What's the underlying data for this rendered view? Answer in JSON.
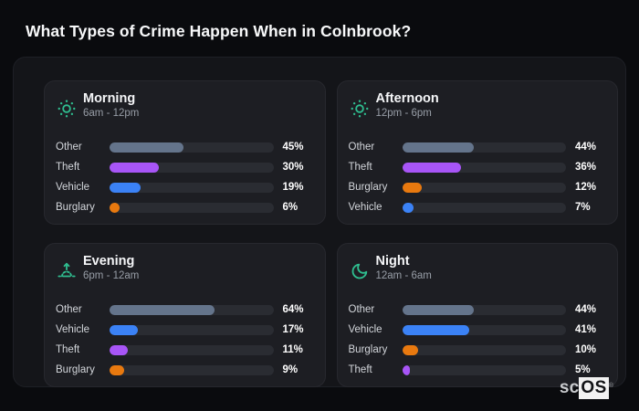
{
  "title": "What Types of Crime Happen When in Colnbrook?",
  "brand": {
    "prefix": "sc",
    "suffix": "OS",
    "reg": "®"
  },
  "colors": {
    "page_bg": "#0a0b0e",
    "container_bg": "#141519",
    "panel_bg": "#1d1e23",
    "track_bg": "#2a2c32",
    "icon_teal": "#2fbd8f",
    "other": "#64748b",
    "theft": "#a855f7",
    "vehicle": "#3b82f6",
    "burglary": "#e8790f"
  },
  "panels": [
    {
      "title": "Morning",
      "time": "6am - 12pm",
      "icon": "sun-icon",
      "rows": [
        {
          "label": "Other",
          "pct": 45,
          "display": "45%",
          "color": "#64748b"
        },
        {
          "label": "Theft",
          "pct": 30,
          "display": "30%",
          "color": "#a855f7"
        },
        {
          "label": "Vehicle",
          "pct": 19,
          "display": "19%",
          "color": "#3b82f6"
        },
        {
          "label": "Burglary",
          "pct": 6,
          "display": "6%",
          "color": "#e8790f"
        }
      ]
    },
    {
      "title": "Afternoon",
      "time": "12pm - 6pm",
      "icon": "sun-icon",
      "rows": [
        {
          "label": "Other",
          "pct": 44,
          "display": "44%",
          "color": "#64748b"
        },
        {
          "label": "Theft",
          "pct": 36,
          "display": "36%",
          "color": "#a855f7"
        },
        {
          "label": "Burglary",
          "pct": 12,
          "display": "12%",
          "color": "#e8790f"
        },
        {
          "label": "Vehicle",
          "pct": 7,
          "display": "7%",
          "color": "#3b82f6"
        }
      ]
    },
    {
      "title": "Evening",
      "time": "6pm - 12am",
      "icon": "sunrise-icon",
      "rows": [
        {
          "label": "Other",
          "pct": 64,
          "display": "64%",
          "color": "#64748b"
        },
        {
          "label": "Vehicle",
          "pct": 17,
          "display": "17%",
          "color": "#3b82f6"
        },
        {
          "label": "Theft",
          "pct": 11,
          "display": "11%",
          "color": "#a855f7"
        },
        {
          "label": "Burglary",
          "pct": 9,
          "display": "9%",
          "color": "#e8790f"
        }
      ]
    },
    {
      "title": "Night",
      "time": "12am - 6am",
      "icon": "moon-icon",
      "rows": [
        {
          "label": "Other",
          "pct": 44,
          "display": "44%",
          "color": "#64748b"
        },
        {
          "label": "Vehicle",
          "pct": 41,
          "display": "41%",
          "color": "#3b82f6"
        },
        {
          "label": "Burglary",
          "pct": 10,
          "display": "10%",
          "color": "#e8790f"
        },
        {
          "label": "Theft",
          "pct": 5,
          "display": "5%",
          "color": "#a855f7"
        }
      ]
    }
  ],
  "chart_data": [
    {
      "type": "bar",
      "orientation": "horizontal",
      "title": "Morning",
      "subtitle": "6am - 12pm",
      "categories": [
        "Other",
        "Theft",
        "Vehicle",
        "Burglary"
      ],
      "values": [
        45,
        30,
        19,
        6
      ],
      "unit": "%",
      "xlim": [
        0,
        100
      ],
      "grid": false,
      "legend": "none"
    },
    {
      "type": "bar",
      "orientation": "horizontal",
      "title": "Afternoon",
      "subtitle": "12pm - 6pm",
      "categories": [
        "Other",
        "Theft",
        "Burglary",
        "Vehicle"
      ],
      "values": [
        44,
        36,
        12,
        7
      ],
      "unit": "%",
      "xlim": [
        0,
        100
      ],
      "grid": false,
      "legend": "none"
    },
    {
      "type": "bar",
      "orientation": "horizontal",
      "title": "Evening",
      "subtitle": "6pm - 12am",
      "categories": [
        "Other",
        "Vehicle",
        "Theft",
        "Burglary"
      ],
      "values": [
        64,
        17,
        11,
        9
      ],
      "unit": "%",
      "xlim": [
        0,
        100
      ],
      "grid": false,
      "legend": "none"
    },
    {
      "type": "bar",
      "orientation": "horizontal",
      "title": "Night",
      "subtitle": "12am - 6am",
      "categories": [
        "Other",
        "Vehicle",
        "Burglary",
        "Theft"
      ],
      "values": [
        44,
        41,
        10,
        5
      ],
      "unit": "%",
      "xlim": [
        0,
        100
      ],
      "grid": false,
      "legend": "none"
    }
  ]
}
